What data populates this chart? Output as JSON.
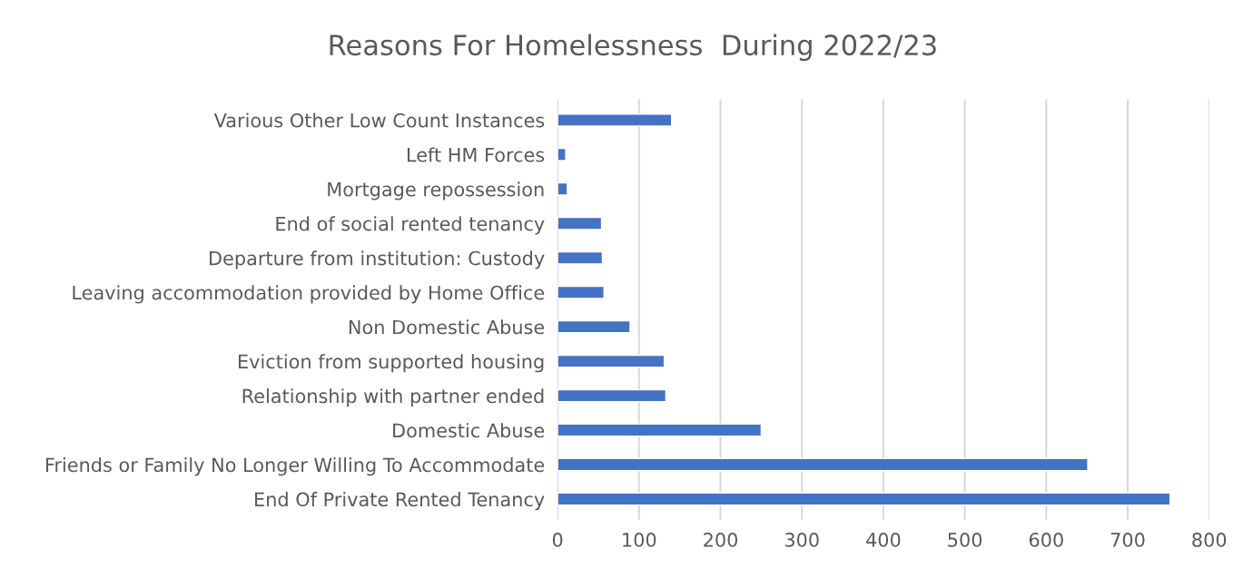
{
  "chart_data": {
    "type": "bar",
    "orientation": "horizontal",
    "title": "Reasons For Homelessness  During 2022/23",
    "categories": [
      "Various Other Low Count Instances",
      "Left HM Forces",
      "Mortgage repossession",
      "End of social rented tenancy",
      "Departure from institution: Custody",
      "Leaving accommodation provided by Home Office",
      "Non Domestic Abuse",
      "Eviction from supported housing",
      "Relationship with partner ended",
      "Domestic Abuse",
      "Friends or Family No Longer Willing To Accommodate",
      "End Of Private Rented Tenancy"
    ],
    "values": [
      140,
      10,
      12,
      54,
      55,
      57,
      89,
      131,
      133,
      250,
      651,
      752
    ],
    "color": "#4472c4",
    "xlim": [
      0,
      800
    ],
    "xticks": [
      0,
      100,
      200,
      300,
      400,
      500,
      600,
      700,
      800
    ],
    "grid": "x"
  }
}
